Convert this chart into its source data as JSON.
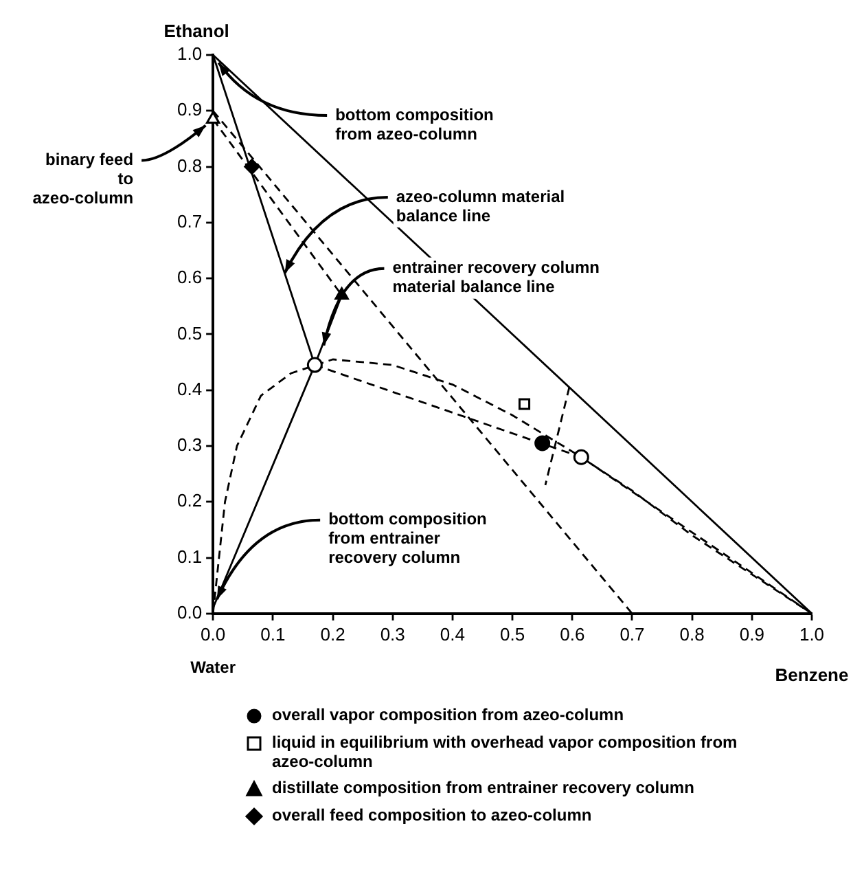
{
  "chart_data": {
    "type": "line",
    "xlabel": "Benzene",
    "ylabel": "Ethanol",
    "xlim": [
      0,
      1
    ],
    "ylim": [
      0,
      1
    ],
    "xticks": [
      {
        "value": 0,
        "label": "0.0"
      },
      0.1,
      0.2,
      0.3,
      0.4,
      0.5,
      0.6,
      0.7,
      0.8,
      0.9,
      {
        "value": 1,
        "label": "1.0"
      }
    ],
    "yticks": [
      {
        "value": 0,
        "label": "0.0"
      },
      0.1,
      0.2,
      0.3,
      0.4,
      0.5,
      0.6,
      0.7,
      0.8,
      0.9,
      {
        "value": 1,
        "label": "1.0"
      }
    ],
    "grid": false,
    "legend": "bottom",
    "series": [
      {
        "color": "#000000",
        "line_style": "solid",
        "marker": "none",
        "x": [
          0,
          1
        ],
        "values": [
          1,
          0
        ]
      },
      {
        "color": "#000000",
        "line_style": "solid",
        "marker": "none",
        "x": [
          0,
          0.17
        ],
        "values": [
          1,
          0.445
        ]
      },
      {
        "color": "#000000",
        "line_style": "solid",
        "marker": "none",
        "x": [
          0,
          0.17,
          0.215
        ],
        "values": [
          0.01,
          0.445,
          0.57
        ]
      },
      {
        "color": "#000000",
        "line_style": "dashed",
        "marker": "none",
        "x": [
          0,
          0.215
        ],
        "values": [
          0.885,
          0.57
        ]
      },
      {
        "color": "#000000",
        "line_style": "dashed",
        "marker": "none",
        "x": [
          0,
          0.7
        ],
        "values": [
          0.9,
          0
        ]
      },
      {
        "color": "#000000",
        "line_style": "dashed",
        "marker": "none",
        "x": [
          0,
          0.01,
          0.02,
          0.04,
          0.08,
          0.13,
          0.2,
          0.3,
          0.4,
          0.5,
          0.6,
          0.7,
          0.8,
          0.9,
          1
        ],
        "values": [
          0,
          0.1,
          0.2,
          0.3,
          0.39,
          0.43,
          0.455,
          0.445,
          0.41,
          0.355,
          0.29,
          0.22,
          0.14,
          0.07,
          0
        ]
      },
      {
        "color": "#000000",
        "line_style": "dashed",
        "marker": "none",
        "x": [
          0.17,
          0.615,
          1
        ],
        "values": [
          0.445,
          0.28,
          0
        ]
      },
      {
        "color": "#000000",
        "line_style": "dashed",
        "marker": "none",
        "x": [
          0.595,
          0.555
        ],
        "values": [
          0.405,
          0.23
        ]
      },
      {
        "type": "scatter",
        "name": "overall vapor composition from azeo-column",
        "color": "#000000",
        "marker": "circle",
        "x": [
          0.55
        ],
        "values": [
          0.305
        ]
      },
      {
        "type": "scatter",
        "name": "liquid in equilibrium with overhead vapor composition from azeo-column",
        "color": "#ffffff",
        "marker": "square",
        "x": [
          0.52
        ],
        "values": [
          0.375
        ]
      },
      {
        "type": "scatter",
        "name": "distillate composition from entrainer recovery column",
        "color": "#000000",
        "marker": "triangle",
        "x": [
          0.215
        ],
        "values": [
          0.57
        ]
      },
      {
        "type": "scatter",
        "name": "overall feed composition to azeo-column",
        "color": "#000000",
        "marker": "diamond",
        "x": [
          0.065
        ],
        "values": [
          0.8
        ]
      },
      {
        "type": "scatter",
        "color": "#ffffff",
        "marker": "circle",
        "x": [
          0.17,
          0.615
        ],
        "values": [
          0.445,
          0.28
        ]
      },
      {
        "type": "scatter",
        "color": "#ffffff",
        "marker": "triangle",
        "x": [
          0
        ],
        "values": [
          0.885
        ]
      }
    ],
    "annotations": [
      {
        "text": "bottom composition\nfrom azeo-column",
        "x": 0,
        "y": 1
      },
      {
        "text": "binary feed\nto\nazeo-column",
        "x": 0,
        "y": 0.885
      },
      {
        "text": "azeo-column material\nbalance line",
        "x": 0.12,
        "y": 0.61
      },
      {
        "text": "entrainer recovery column\nmaterial balance line",
        "x": 0.185,
        "y": 0.48
      },
      {
        "text": "bottom composition\nfrom entrainer\nrecovery column",
        "x": 0,
        "y": 0.01
      },
      {
        "text": "Water",
        "x": 0,
        "y": 0
      }
    ]
  }
}
